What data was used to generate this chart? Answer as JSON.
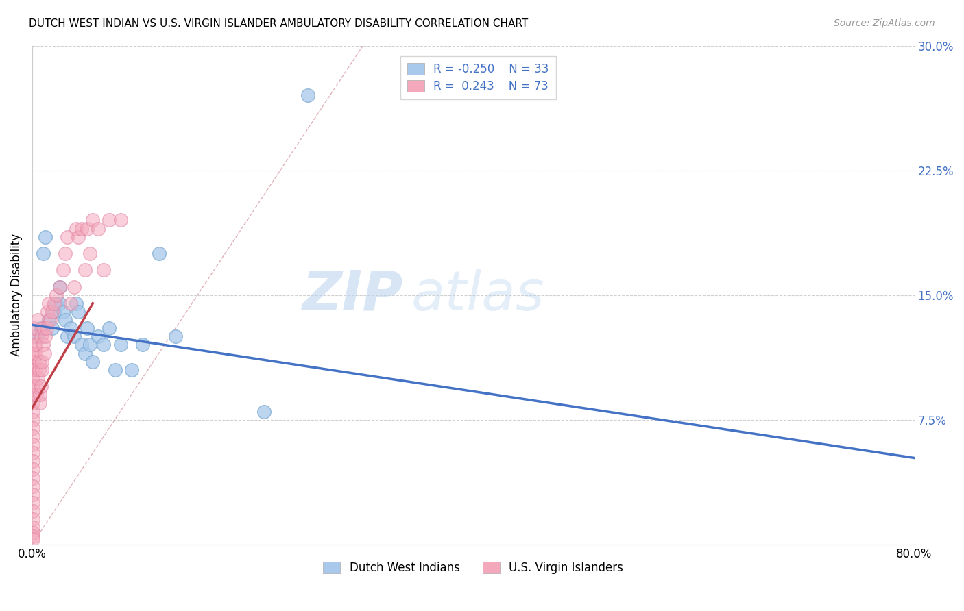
{
  "title": "DUTCH WEST INDIAN VS U.S. VIRGIN ISLANDER AMBULATORY DISABILITY CORRELATION CHART",
  "source": "Source: ZipAtlas.com",
  "ylabel": "Ambulatory Disability",
  "xlim": [
    0,
    0.8
  ],
  "ylim": [
    0,
    0.3
  ],
  "xticks": [
    0.0,
    0.2,
    0.4,
    0.6,
    0.8
  ],
  "yticks": [
    0.075,
    0.15,
    0.225,
    0.3
  ],
  "xtick_labels": [
    "0.0%",
    "",
    "",
    "",
    "80.0%"
  ],
  "ytick_labels": [
    "7.5%",
    "15.0%",
    "22.5%",
    "30.0%"
  ],
  "legend_r1": "R = -0.250",
  "legend_n1": "N = 33",
  "legend_r2": "R =  0.243",
  "legend_n2": "N = 73",
  "blue_color": "#A8C8EC",
  "pink_color": "#F4A8BC",
  "blue_line_color": "#4472C4",
  "pink_line_color": "#C0404A",
  "ref_line_color": "#D8A0A8",
  "watermark_zip": "ZIP",
  "watermark_atlas": "atlas",
  "blue_scatter_x": [
    0.005,
    0.008,
    0.01,
    0.012,
    0.015,
    0.018,
    0.02,
    0.022,
    0.025,
    0.025,
    0.028,
    0.03,
    0.032,
    0.035,
    0.038,
    0.04,
    0.042,
    0.045,
    0.048,
    0.05,
    0.052,
    0.055,
    0.06,
    0.065,
    0.07,
    0.075,
    0.08,
    0.09,
    0.1,
    0.115,
    0.13,
    0.21,
    0.25
  ],
  "blue_scatter_y": [
    0.125,
    0.13,
    0.175,
    0.185,
    0.135,
    0.13,
    0.14,
    0.145,
    0.155,
    0.145,
    0.14,
    0.135,
    0.125,
    0.13,
    0.125,
    0.145,
    0.14,
    0.12,
    0.115,
    0.13,
    0.12,
    0.11,
    0.125,
    0.12,
    0.13,
    0.105,
    0.12,
    0.105,
    0.12,
    0.175,
    0.125,
    0.08,
    0.27
  ],
  "pink_scatter_x": [
    0.001,
    0.001,
    0.001,
    0.001,
    0.001,
    0.001,
    0.001,
    0.001,
    0.001,
    0.001,
    0.001,
    0.001,
    0.001,
    0.001,
    0.001,
    0.001,
    0.001,
    0.001,
    0.001,
    0.001,
    0.001,
    0.001,
    0.001,
    0.001,
    0.001,
    0.002,
    0.002,
    0.002,
    0.002,
    0.002,
    0.003,
    0.003,
    0.003,
    0.004,
    0.004,
    0.005,
    0.005,
    0.006,
    0.006,
    0.007,
    0.007,
    0.008,
    0.008,
    0.009,
    0.009,
    0.01,
    0.01,
    0.011,
    0.012,
    0.013,
    0.014,
    0.015,
    0.016,
    0.018,
    0.02,
    0.022,
    0.025,
    0.028,
    0.03,
    0.032,
    0.035,
    0.038,
    0.04,
    0.042,
    0.045,
    0.048,
    0.05,
    0.052,
    0.055,
    0.06,
    0.065,
    0.07,
    0.08
  ],
  "pink_scatter_y": [
    0.115,
    0.11,
    0.105,
    0.1,
    0.095,
    0.09,
    0.085,
    0.08,
    0.075,
    0.07,
    0.065,
    0.06,
    0.055,
    0.05,
    0.045,
    0.04,
    0.035,
    0.03,
    0.025,
    0.02,
    0.015,
    0.01,
    0.007,
    0.005,
    0.003,
    0.12,
    0.125,
    0.115,
    0.11,
    0.13,
    0.105,
    0.115,
    0.12,
    0.09,
    0.095,
    0.1,
    0.135,
    0.105,
    0.11,
    0.085,
    0.09,
    0.095,
    0.125,
    0.105,
    0.11,
    0.12,
    0.13,
    0.115,
    0.125,
    0.13,
    0.14,
    0.145,
    0.135,
    0.14,
    0.145,
    0.15,
    0.155,
    0.165,
    0.175,
    0.185,
    0.145,
    0.155,
    0.19,
    0.185,
    0.19,
    0.165,
    0.19,
    0.175,
    0.195,
    0.19,
    0.165,
    0.195,
    0.195
  ],
  "blue_trendline_x": [
    0.0,
    0.8
  ],
  "blue_trendline_y": [
    0.132,
    0.052
  ],
  "pink_trendline_x": [
    0.0,
    0.055
  ],
  "pink_trendline_y": [
    0.082,
    0.145
  ],
  "ref_line_x": [
    0.0,
    0.3
  ],
  "ref_line_y": [
    0.0,
    0.3
  ]
}
